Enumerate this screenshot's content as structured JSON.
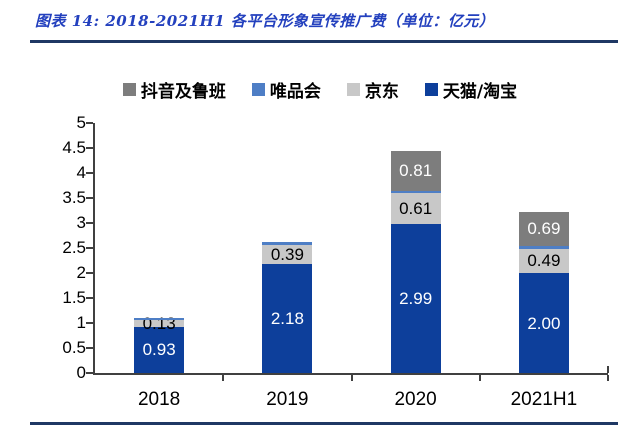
{
  "figure": {
    "title": "图表 14:  2018-2021H1 各平台形象宣传推广费（单位：亿元）"
  },
  "colors": {
    "title_text": "#2340BE",
    "rule": "#1F3864",
    "axis": "#404040",
    "tmall_taobao_blue": "#0D3F9B",
    "vipshop_blue": "#4E7EC5",
    "jd_gray": "#C8C8C8",
    "douyin_luban_gray": "#7D7D7D"
  },
  "chart_data": {
    "type": "bar",
    "stacked": true,
    "title": "2018-2021H1 各平台形象宣传推广费（单位：亿元）",
    "categories": [
      "2018",
      "2019",
      "2020",
      "2021H1"
    ],
    "series": [
      {
        "key": "tmall-taobao",
        "name": "天猫/淘宝",
        "color": "#0D3F9B",
        "label_color": "#FFFFFF",
        "values": [
          0.93,
          2.18,
          2.99,
          2.0
        ],
        "labels": [
          "0.93",
          "2.18",
          "2.99",
          "2.00"
        ]
      },
      {
        "key": "jd",
        "name": "京东",
        "color": "#C8C8C8",
        "label_color": "#000000",
        "values": [
          0.13,
          0.39,
          0.61,
          0.49
        ],
        "labels": [
          "0.13",
          "0.39",
          "0.61",
          "0.49"
        ]
      },
      {
        "key": "vipshop",
        "name": "唯品会",
        "color": "#4E7EC5",
        "label_color": "#000000",
        "values": [
          0.05,
          0.05,
          0.04,
          0.05
        ],
        "labels": [
          "",
          "",
          "",
          ""
        ]
      },
      {
        "key": "douyin-luban",
        "name": "抖音及鲁班",
        "color": "#7D7D7D",
        "label_color": "#FFFFFF",
        "values": [
          0,
          0,
          0.81,
          0.69
        ],
        "labels": [
          "",
          "",
          "0.81",
          "0.69"
        ]
      }
    ],
    "legend": [
      {
        "key": "douyin-luban",
        "label": "抖音及鲁班",
        "color": "#7D7D7D"
      },
      {
        "key": "vipshop",
        "label": "唯品会",
        "color": "#4E7EC5"
      },
      {
        "key": "jd",
        "label": "京东",
        "color": "#C8C8C8"
      },
      {
        "key": "tmall-taobao",
        "label": "天猫/淘宝",
        "color": "#0D3F9B"
      }
    ],
    "legend_position": "top",
    "grid": false,
    "y_axis": {
      "min": 0,
      "max": 5,
      "step": 0.5,
      "tick_labels": [
        "0",
        "0.5",
        "1",
        "1.5",
        "2",
        "2.5",
        "3",
        "3.5",
        "4",
        "4.5",
        "5"
      ]
    },
    "x_axis": {
      "tick_labels": [
        "2018",
        "2019",
        "2020",
        "2021H1"
      ]
    }
  }
}
